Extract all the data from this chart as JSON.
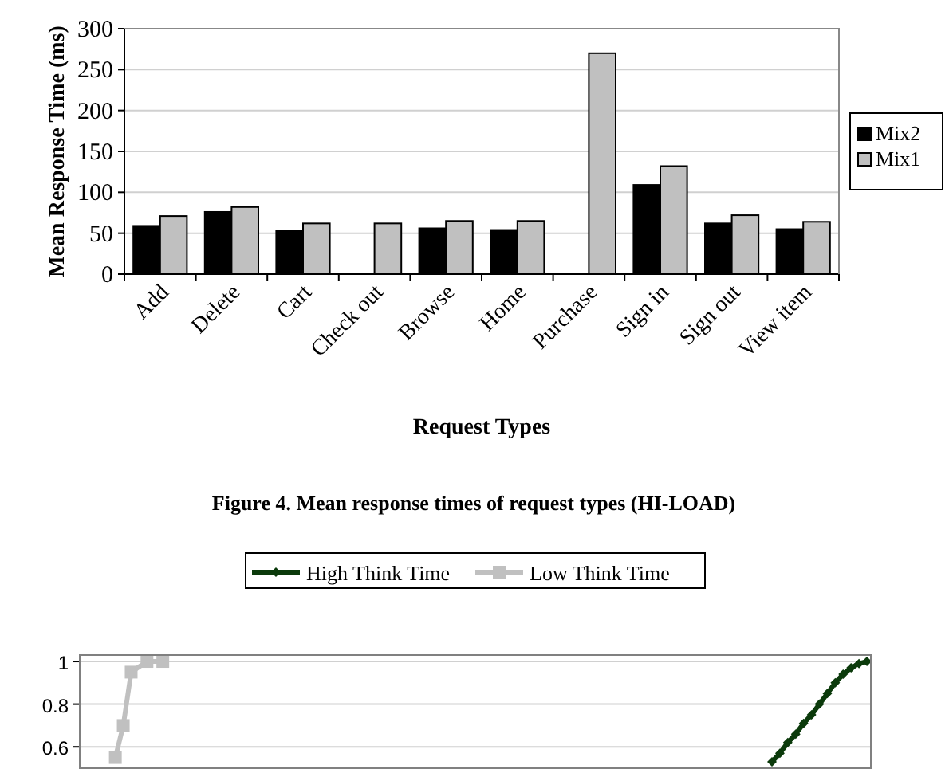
{
  "chart_data": [
    {
      "type": "bar",
      "ylabel": "Mean Response Time (ms)",
      "xlabel": "Request Types",
      "categories": [
        "Add",
        "Delete",
        "Cart",
        "Check out",
        "Browse",
        "Home",
        "Purchase",
        "Sign in",
        "Sign out",
        "View item"
      ],
      "series": [
        {
          "name": "Mix2",
          "color": "#000000",
          "values": [
            59,
            76,
            53,
            null,
            56,
            54,
            null,
            109,
            62,
            55
          ]
        },
        {
          "name": "Mix1",
          "color": "#c0c0c0",
          "values": [
            71,
            82,
            62,
            62,
            65,
            65,
            270,
            132,
            72,
            64
          ]
        }
      ],
      "ylim": [
        0,
        300
      ],
      "yticks": [
        0,
        50,
        100,
        150,
        200,
        250,
        300
      ],
      "grid": "y",
      "legend": "right",
      "annotations": [
        "Figure 4. Mean response times of request types (HI-LOAD)"
      ]
    },
    {
      "type": "line",
      "categories": [
        null,
        null,
        null,
        null,
        null,
        null,
        null,
        null,
        null,
        null,
        null,
        null,
        null,
        null,
        null,
        null,
        null,
        null,
        null,
        null,
        null,
        null,
        null,
        null,
        null,
        null,
        null,
        null,
        null,
        null,
        null,
        null,
        null,
        null,
        null,
        null,
        null,
        null,
        null,
        null,
        null,
        null,
        null,
        null,
        null,
        null,
        null,
        null,
        null,
        null,
        null,
        null,
        null,
        null,
        null,
        null,
        null,
        null,
        null,
        null,
        null,
        null,
        null,
        null,
        null,
        null,
        null,
        null,
        null,
        null,
        null,
        null,
        null,
        null,
        null,
        null,
        null,
        null,
        null,
        null,
        null,
        null,
        null,
        null,
        null,
        null,
        null,
        null,
        null,
        null,
        null,
        null,
        null,
        null,
        null,
        null,
        null,
        null,
        null,
        null
      ],
      "series": [
        {
          "name": "High Think Time",
          "color": "#0b3a0b",
          "marker": "diamond",
          "values": [
            null,
            null,
            null,
            null,
            null,
            null,
            null,
            null,
            null,
            null,
            null,
            null,
            null,
            null,
            null,
            null,
            null,
            null,
            null,
            null,
            null,
            null,
            null,
            null,
            null,
            null,
            null,
            null,
            null,
            null,
            null,
            null,
            null,
            null,
            null,
            null,
            null,
            null,
            null,
            null,
            null,
            null,
            null,
            null,
            null,
            null,
            null,
            null,
            null,
            null,
            null,
            null,
            null,
            null,
            null,
            null,
            null,
            null,
            null,
            null,
            null,
            null,
            null,
            null,
            null,
            null,
            null,
            null,
            null,
            null,
            null,
            null,
            null,
            null,
            null,
            null,
            null,
            null,
            null,
            null,
            null,
            null,
            null,
            null,
            null,
            null,
            null,
            0.53,
            0.57,
            0.62,
            0.66,
            0.71,
            0.75,
            0.8,
            0.85,
            0.9,
            0.94,
            0.97,
            0.99,
            1
          ]
        },
        {
          "name": "Low Think Time",
          "color": "#c0c0c0",
          "marker": "square",
          "values": [
            null,
            null,
            null,
            null,
            0.55,
            0.7,
            0.95,
            null,
            1,
            null,
            1,
            null,
            null,
            null,
            null,
            null,
            null,
            null,
            null,
            null,
            null,
            null,
            null,
            null,
            null,
            null,
            null,
            null,
            null,
            null,
            null,
            null,
            null,
            null,
            null,
            null,
            null,
            null,
            null,
            null,
            null,
            null,
            null,
            null,
            null,
            null,
            null,
            null,
            null,
            null,
            null,
            null,
            null,
            null,
            null,
            null,
            null,
            null,
            null,
            null,
            null,
            null,
            null,
            null,
            null,
            null,
            null,
            null,
            null,
            null,
            null,
            null,
            null,
            null,
            null,
            null,
            null,
            null,
            null,
            null,
            null,
            null,
            null,
            null,
            null,
            null,
            null,
            null,
            null,
            null,
            null,
            null,
            null,
            null,
            null,
            null,
            null,
            null,
            null,
            null
          ]
        }
      ],
      "ylim": [
        0.5,
        1.03
      ],
      "yticks": [
        {
          "value": 0.6,
          "label": "0.6"
        },
        {
          "value": 0.8,
          "label": "0.8"
        },
        1
      ],
      "grid": "y",
      "legend": "top"
    }
  ]
}
